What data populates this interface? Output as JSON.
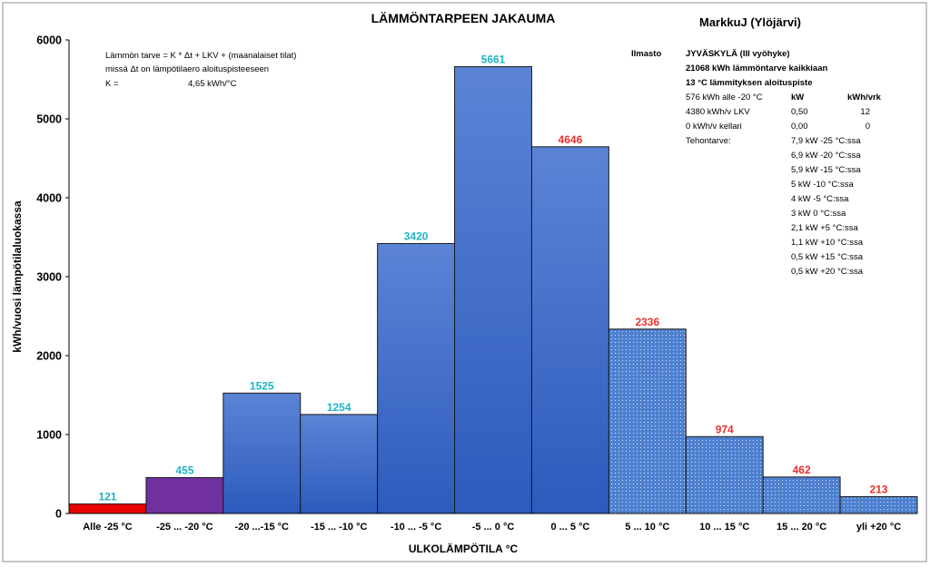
{
  "chart_data": {
    "type": "bar",
    "title": "LÄMMÖNTARPEEN JAKAUMA",
    "author": "MarkkuJ (Ylöjärvi)",
    "xlabel": "ULKOLÄMPÖTILA °C",
    "ylabel": "kWh/vuosi lämpötilaluokassa",
    "ylim": [
      0,
      6000
    ],
    "yticks": [
      "0",
      "1000",
      "2000",
      "3000",
      "4000",
      "5000",
      "6000"
    ],
    "grid": false,
    "categories": [
      "Alle -25 °C",
      "-25 ... -20 °C",
      "-20 ...-15 °C",
      "-15 ... -10 °C",
      "-10 ... -5 °C",
      "-5 ... 0 °C",
      "0 ... 5 °C",
      "5 ... 10 °C",
      "10 ... 15 °C",
      "15 ... 20 °C",
      "yli +20 °C"
    ],
    "values": [
      121,
      455,
      1525,
      1254,
      3420,
      5661,
      4646,
      2336,
      974,
      462,
      213
    ],
    "value_labels": [
      "121",
      "455",
      "1525",
      "1254",
      "3420",
      "5661",
      "4646",
      "2336",
      "974",
      "462",
      "213"
    ],
    "bar_styles": [
      "red",
      "purple",
      "blue",
      "blue",
      "blue",
      "blue",
      "blue",
      "dotted",
      "dotted",
      "dotted",
      "dotted"
    ],
    "label_colors": [
      "teal",
      "teal",
      "teal",
      "teal",
      "teal",
      "teal",
      "red",
      "red",
      "red",
      "red",
      "red"
    ]
  },
  "colors": {
    "red": "#e60000",
    "purple": "#7030a0",
    "blue": "#3a6cc9",
    "dotted": "#4f81d0",
    "teal": "#1fb3c4",
    "label_red": "#e8302e",
    "axis": "#000000"
  },
  "formula": {
    "line1": "Lämmön tarve =  K * Δt + LKV + (maanalaiset tilat)",
    "line2": "missä Δt on lämpötilaero aloituspisteeseen",
    "k_label": "K =",
    "k_value": "4,65 kWh/°C"
  },
  "info": {
    "climate_label": "Ilmasto",
    "climate_value": "JYVÄSKYLÄ (III vyöhyke)",
    "total": "21068  kWh lämmöntarve kaikkiaan",
    "start_point": "13  °C lämmityksen aloituspiste",
    "below20": "576  kWh alle -20 °C",
    "col_kw": "kW",
    "col_kwhvrk": "kWh/vrk",
    "lkv_label": "4380  kWh/v  LKV",
    "lkv_kw": "0,50",
    "lkv_kwhvrk": "12",
    "kellari_label": "0  kWh/v  kellari",
    "kellari_kw": "0,00",
    "kellari_kwhvrk": "0",
    "power_label": "Tehontarve:",
    "power_lines": [
      "7,9  kW  -25 °C:ssa",
      "6,9  kW  -20 °C:ssa",
      "5,9  kW  -15 °C:ssa",
      "5  kW  -10 °C:ssa",
      "4  kW  -5 °C:ssa",
      "3  kW  0 °C:ssa",
      "2,1  kW  +5 °C:ssa",
      "1,1  kW  +10 °C:ssa",
      "0,5  kW  +15 °C:ssa",
      "0,5  kW  +20 °C:ssa"
    ]
  }
}
